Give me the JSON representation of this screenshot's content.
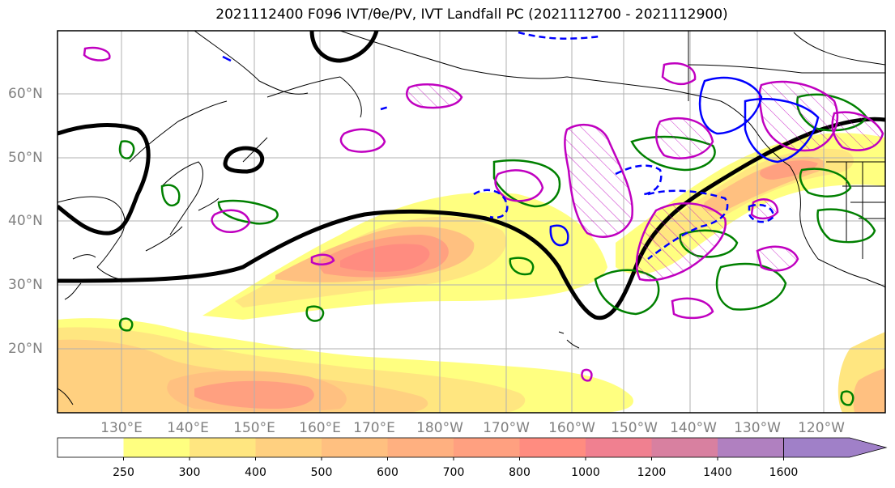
{
  "title": "2021112400 F096 IVT/θe/PV, IVT Landfall PC (2021112700 - 2021112900)",
  "latitude_labels": [
    "60°N",
    "50°N",
    "40°N",
    "30°N",
    "20°N"
  ],
  "longitude_labels": [
    "130°E",
    "140°E",
    "150°E",
    "160°E",
    "170°E",
    "180°W",
    "170°W",
    "160°W",
    "150°W",
    "140°W",
    "130°W",
    "120°W"
  ],
  "colorbar": {
    "ticks": [
      "250",
      "300",
      "400",
      "500",
      "600",
      "700",
      "800",
      "1000",
      "1200",
      "1400",
      "1600"
    ],
    "colors": [
      "#ffffff",
      "#ffff80",
      "#ffe680",
      "#ffd080",
      "#ffc080",
      "#ffb080",
      "#ffa080",
      "#ff8c80",
      "#f08090",
      "#d880a0",
      "#b080c0",
      "#a080c8"
    ],
    "extend": "max"
  },
  "colors": {
    "ivt_low": "#ffff80",
    "ivt_high": "#ff8c80",
    "pv_contour": "#000000",
    "green_contour": "#008000",
    "magenta_contour": "#c000c0",
    "blue_contour": "#0000ff",
    "gridline": "#b0b0b0",
    "coastline": "#000000"
  }
}
